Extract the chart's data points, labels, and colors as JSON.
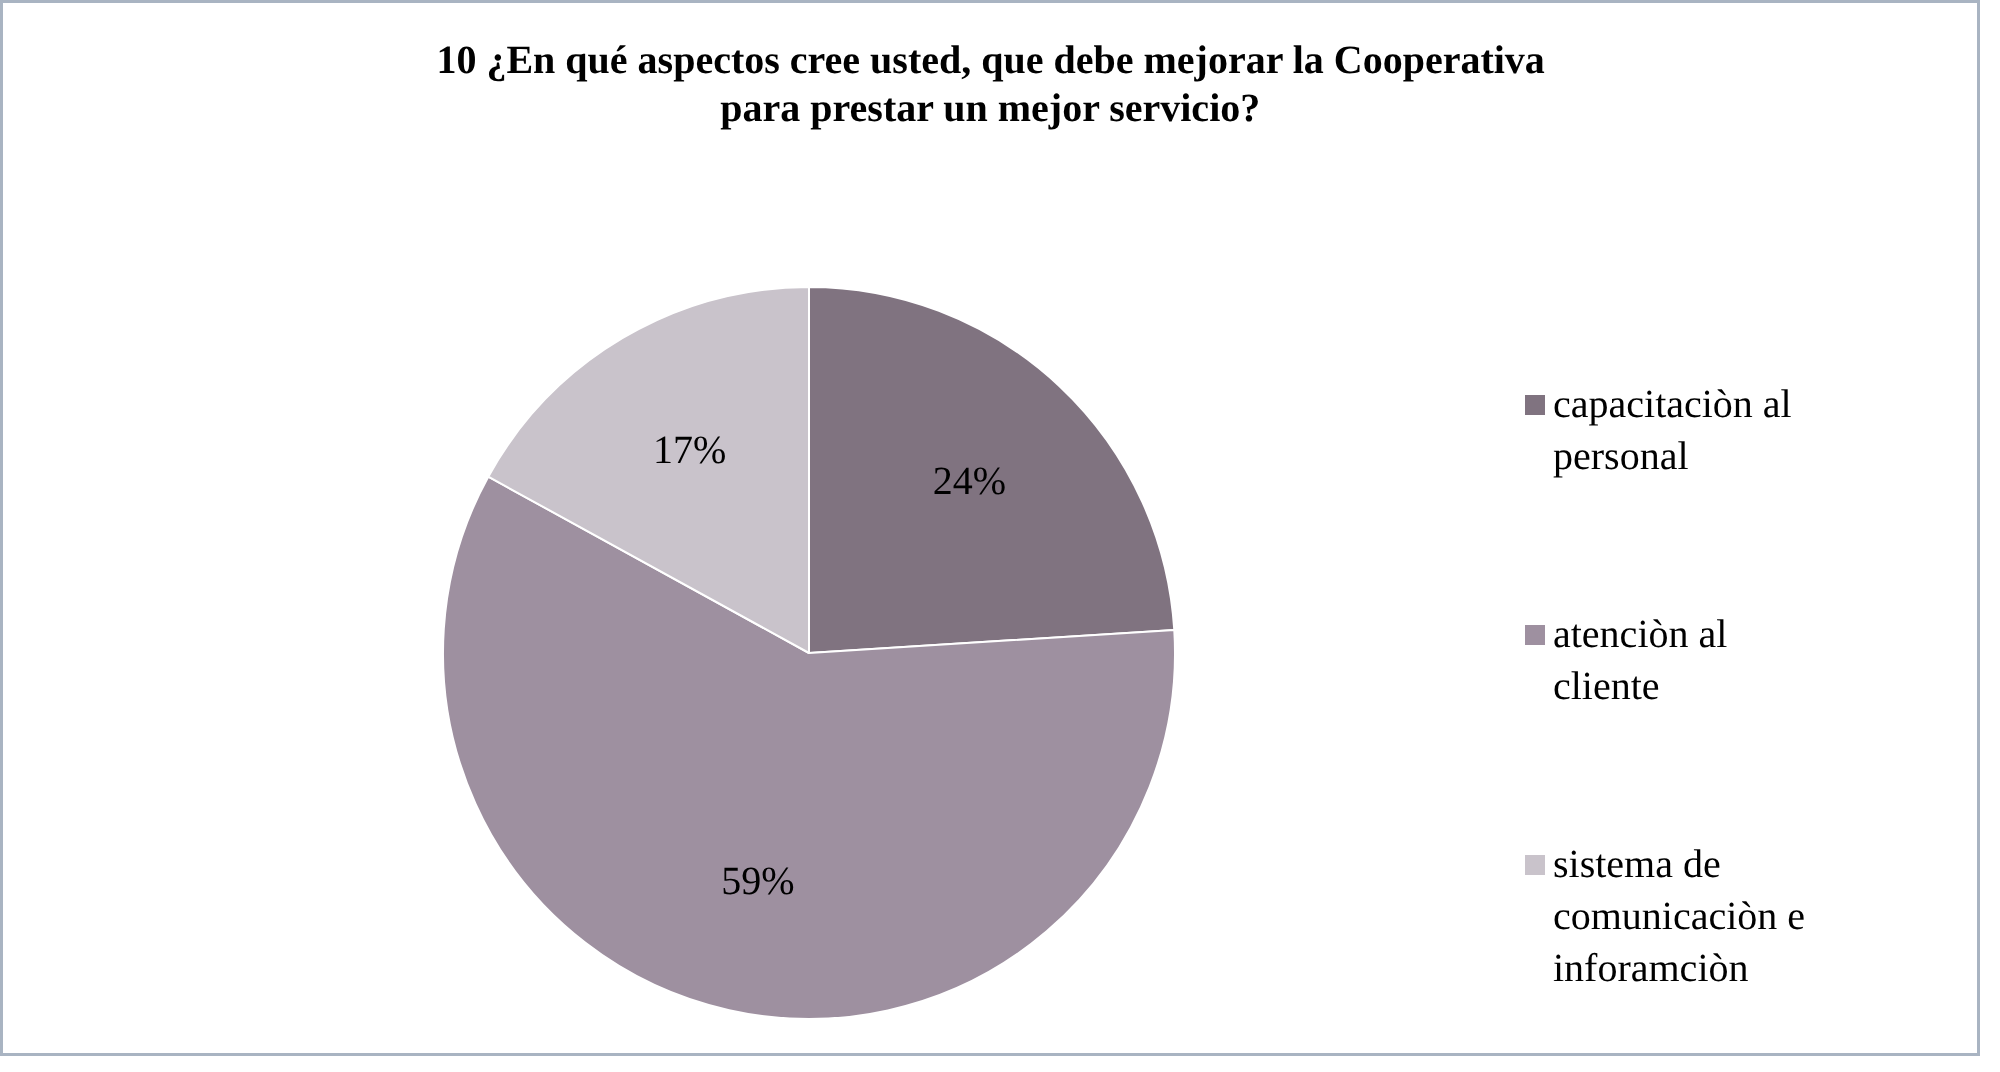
{
  "chart_data": {
    "type": "pie",
    "title": "10 ¿En qué aspectos cree usted, que debe mejorar la Cooperativa para prestar un mejor servicio?",
    "categories": [
      "capacitaciòn al personal",
      "atenciòn al cliente",
      "sistema de comunicaciòn e inforamciòn"
    ],
    "values": [
      24,
      59,
      17
    ],
    "colors": [
      "#807380",
      "#9e90a0",
      "#c9c3cb"
    ],
    "value_labels": [
      "24%",
      "59%",
      "17%"
    ],
    "legend": "right"
  }
}
